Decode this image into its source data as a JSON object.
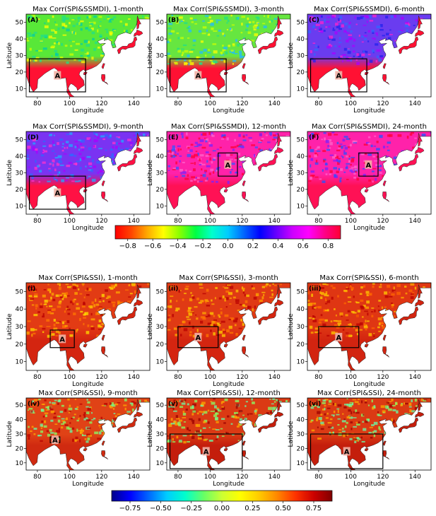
{
  "chart_data": [
    {
      "type": "heatmap",
      "group": "SPI&SSMDI",
      "panels": [
        {
          "tag": "(A)",
          "title": "Max Corr(SPI&SSMDI), 1-month",
          "box_label": "A",
          "box_lon": [
            75,
            110
          ],
          "box_lat": [
            8,
            28
          ]
        },
        {
          "tag": "(B)",
          "title": "Max Corr(SPI&SSMDI), 3-month",
          "box_label": "A",
          "box_lon": [
            75,
            110
          ],
          "box_lat": [
            8,
            28
          ]
        },
        {
          "tag": "(C)",
          "title": "Max Corr(SPI&SSMDI), 6-month",
          "box_label": "A",
          "box_lon": [
            75,
            110
          ],
          "box_lat": [
            8,
            28
          ]
        },
        {
          "tag": "(D)",
          "title": "Max Corr(SPI&SSMDI), 9-month",
          "box_label": "A",
          "box_lon": [
            75,
            110
          ],
          "box_lat": [
            8,
            28
          ]
        },
        {
          "tag": "(E)",
          "title": "Max Corr(SPI&SSMDI), 12-month",
          "box_label": "A",
          "box_lon": [
            105,
            117
          ],
          "box_lat": [
            28,
            42
          ]
        },
        {
          "tag": "(F)",
          "title": "Max Corr(SPI&SSMDI), 24-month",
          "box_label": "A",
          "box_lon": [
            105,
            117
          ],
          "box_lat": [
            28,
            42
          ]
        }
      ],
      "xlabel": "Longitude",
      "ylabel": "Latitude",
      "xticks": [
        80,
        100,
        120,
        140
      ],
      "yticks": [
        10,
        20,
        30,
        40,
        50
      ],
      "xlim": [
        73,
        150
      ],
      "ylim": [
        5,
        55
      ],
      "colorbar": {
        "ticks": [
          "−0.8",
          "−0.6",
          "−0.4",
          "−0.2",
          "0.0",
          "0.2",
          "0.4",
          "0.6",
          "0.8"
        ],
        "range": [
          -0.9,
          0.9
        ],
        "colors": [
          "#ff0000",
          "#ff4400",
          "#ffaa00",
          "#ffff00",
          "#88ff00",
          "#00ff44",
          "#00ffcc",
          "#00ccff",
          "#0066ff",
          "#0000ff",
          "#6600ff",
          "#cc00ff",
          "#ff00ff",
          "#ff0088",
          "#ff0033"
        ]
      }
    },
    {
      "type": "heatmap",
      "group": "SPI&SSI",
      "panels": [
        {
          "tag": "(i)",
          "title": "Max Corr(SPI&SSI), 1-month",
          "box_label": "A",
          "box_lon": [
            88,
            103
          ],
          "box_lat": [
            18,
            28
          ]
        },
        {
          "tag": "(ii)",
          "title": "Max Corr(SPI&SSI), 3-month",
          "box_label": "A",
          "box_lon": [
            80,
            105
          ],
          "box_lat": [
            18,
            30
          ]
        },
        {
          "tag": "(iii)",
          "title": "Max Corr(SPI&SSI), 6-month",
          "box_label": "A",
          "box_lon": [
            80,
            105
          ],
          "box_lat": [
            18,
            30
          ]
        },
        {
          "tag": "(iv)",
          "title": "Max Corr(SPI&SSI), 9-month",
          "box_label": "A",
          "box_lon": [
            88,
            94
          ],
          "box_lat": [
            24,
            28
          ]
        },
        {
          "tag": "(v)",
          "title": "Max Corr(SPI&SSI), 12-month",
          "box_label": "A",
          "box_lon": [
            75,
            120
          ],
          "box_lat": [
            6,
            30
          ]
        },
        {
          "tag": "(vi)",
          "title": "Max Corr(SPI&SSI), 24-month",
          "box_label": "A",
          "box_lon": [
            75,
            120
          ],
          "box_lat": [
            6,
            30
          ]
        }
      ],
      "xlabel": "Longitude",
      "ylabel": "Latitude",
      "xticks": [
        80,
        100,
        120,
        140
      ],
      "yticks": [
        10,
        20,
        30,
        40,
        50
      ],
      "xlim": [
        73,
        150
      ],
      "ylim": [
        5,
        55
      ],
      "colorbar": {
        "ticks": [
          "−0.75",
          "−0.50",
          "−0.25",
          "0.00",
          "0.25",
          "0.50",
          "0.75"
        ],
        "range": [
          -0.9,
          0.9
        ],
        "colors": [
          "#00008b",
          "#0000ff",
          "#0066ff",
          "#00ccff",
          "#00ffcc",
          "#66ff66",
          "#ccff33",
          "#ffff00",
          "#ffcc00",
          "#ff8800",
          "#ff3300",
          "#cc0000",
          "#800000"
        ]
      }
    }
  ]
}
